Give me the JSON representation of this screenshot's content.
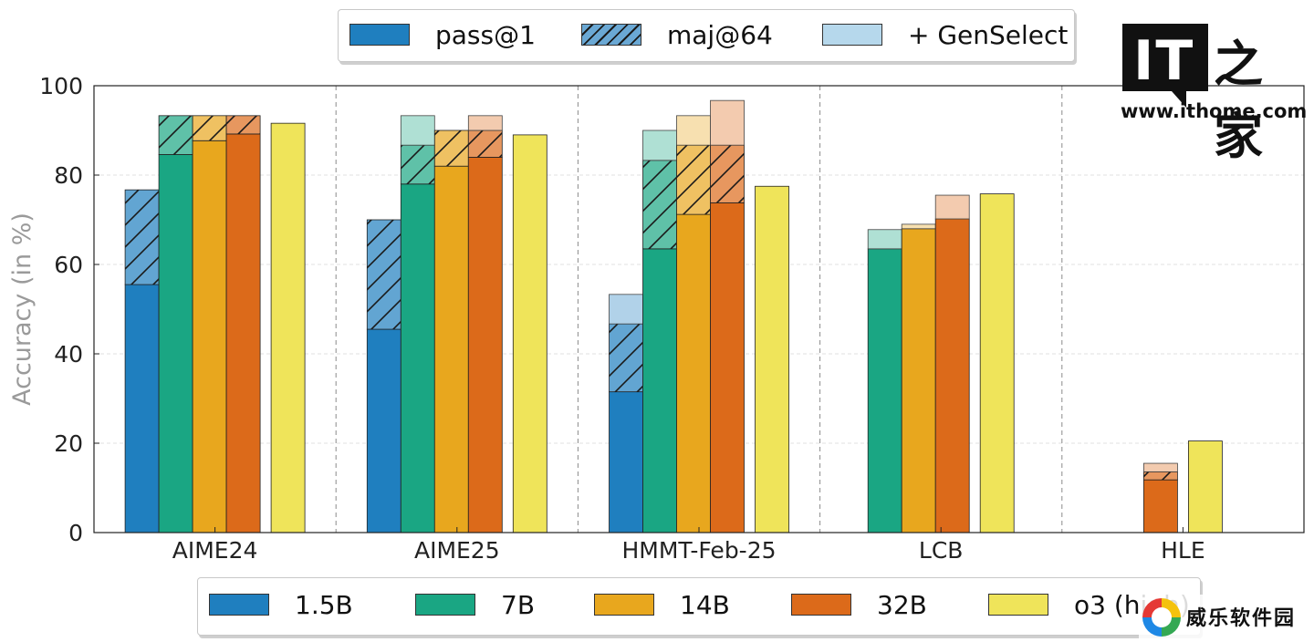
{
  "chart_data": {
    "type": "bar",
    "categories": [
      "AIME24",
      "AIME25",
      "HMMT-Feb-25",
      "LCB",
      "HLE"
    ],
    "ylabel": "Accuracy (in %)",
    "ylim": [
      0,
      100
    ],
    "yticks": [
      "0",
      "20",
      "40",
      "60",
      "80",
      "100"
    ],
    "grid": true,
    "series": [
      {
        "name": "1.5B",
        "color": "#1f7fbf",
        "pass1": [
          55.5,
          45.5,
          31.5,
          null,
          null
        ],
        "maj64": [
          76.7,
          70.0,
          46.7,
          null,
          null
        ],
        "genselect": [
          null,
          null,
          53.3,
          null,
          null
        ]
      },
      {
        "name": "7B",
        "color": "#1aa683",
        "pass1": [
          84.6,
          78.0,
          63.5,
          63.5,
          null
        ],
        "maj64": [
          93.3,
          86.7,
          83.3,
          null,
          null
        ],
        "genselect": [
          null,
          93.3,
          90.0,
          67.8,
          null
        ]
      },
      {
        "name": "14B",
        "color": "#e8a71e",
        "pass1": [
          87.7,
          82.0,
          71.2,
          68.0,
          null
        ],
        "maj64": [
          93.3,
          90.0,
          86.7,
          null,
          null
        ],
        "genselect": [
          null,
          null,
          93.3,
          69.0,
          null
        ]
      },
      {
        "name": "32B",
        "color": "#dc6a1a",
        "pass1": [
          89.2,
          84.0,
          73.8,
          70.2,
          11.8
        ],
        "maj64": [
          93.3,
          90.0,
          86.7,
          null,
          13.6
        ],
        "genselect": [
          null,
          93.3,
          96.7,
          75.5,
          15.5
        ]
      },
      {
        "name": "o3 (high)",
        "color": "#efe45a",
        "pass1": [
          91.6,
          89.0,
          77.5,
          75.8,
          20.5
        ],
        "maj64": [
          null,
          null,
          null,
          null,
          null
        ],
        "genselect": [
          null,
          null,
          null,
          null,
          null
        ]
      }
    ]
  },
  "legend_top": {
    "items": [
      {
        "label": "pass@1"
      },
      {
        "label": "maj@64"
      },
      {
        "label": "+ GenSelect"
      }
    ]
  },
  "legend_bottom": {
    "items": [
      {
        "label": "1.5B",
        "color": "#1f7fbf"
      },
      {
        "label": "7B",
        "color": "#1aa683"
      },
      {
        "label": "14B",
        "color": "#e8a71e"
      },
      {
        "label": "32B",
        "color": "#dc6a1a"
      },
      {
        "label": "o3 (high)",
        "color": "#efe45a"
      }
    ]
  },
  "watermarks": {
    "it_logo": "IT",
    "it_home": "之家",
    "it_url": "www.ithome.com",
    "site_name": "威乐软件园"
  }
}
